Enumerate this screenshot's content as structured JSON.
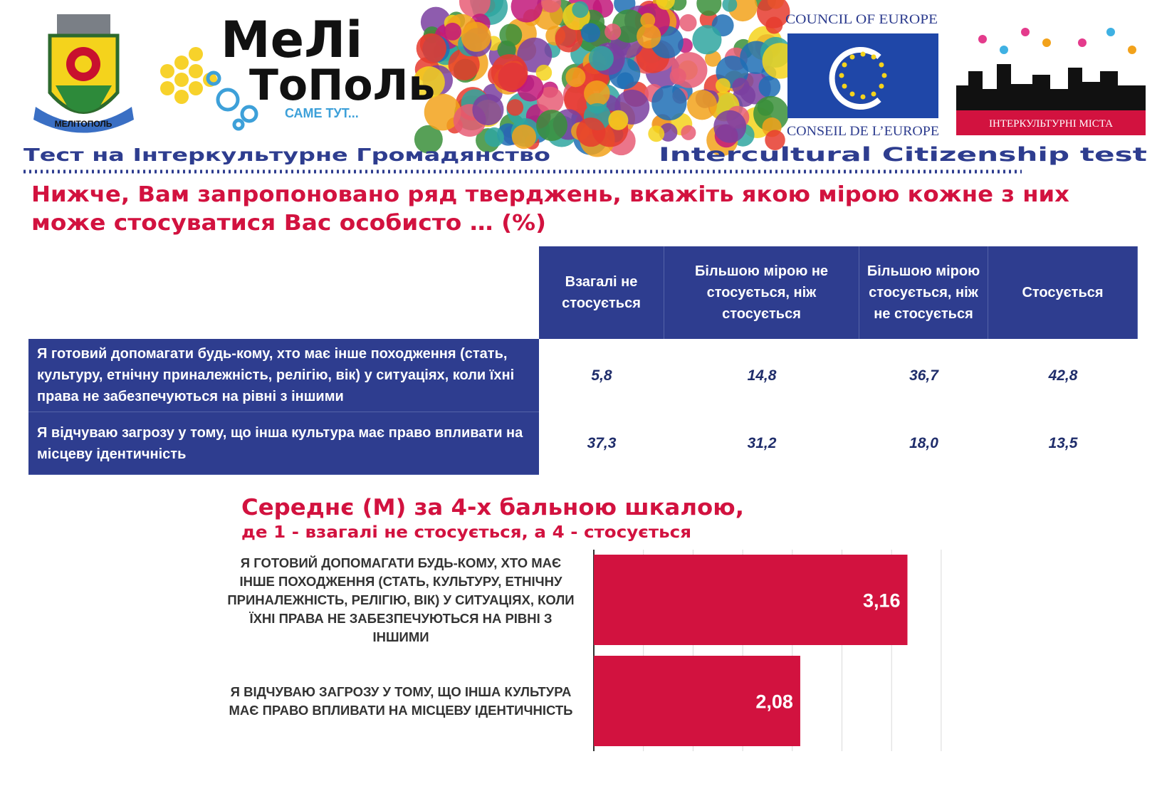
{
  "header": {
    "city_arms": "МЕЛІТОПОЛЬ",
    "brand_line1": "МеЛі",
    "brand_line2": "ТоПоЛь",
    "brand_slogan": "САМЕ ТУТ...",
    "coe_top": "COUNCIL OF EUROPE",
    "coe_bottom": "CONSEIL DE L’EUROPE",
    "icc": "ІНТЕРКУЛЬТУРНІ МІСТА",
    "title_uk": "Тест на Інтеркультурне Громадянство",
    "title_en": "Intercultural Citizenship test"
  },
  "question": [
    "Нижче, Вам запропоновано ряд тверджень, вкажіть якою мірою кожне з них",
    "може стосуватися Вас особисто … (%)"
  ],
  "table": {
    "columns": [
      "Взагалі не стосується",
      "Більшою мірою не стосується, ніж стосується",
      "Більшою мірою стосується, ніж не стосується",
      "Стосується"
    ],
    "rows": [
      {
        "label": "Я готовий допомагати будь-кому, хто має інше походження (стать, культуру, етнічну приналежність, релігію, вік) у ситуаціях, коли їхні права не забезпечуються на рівні з іншими",
        "values": [
          "5,8",
          "14,8",
          "36,7",
          "42,8"
        ]
      },
      {
        "label": "Я відчуваю загрозу у тому, що інша культура має право впливати на місцеву ідентичність",
        "values": [
          "37,3",
          "31,2",
          "18,0",
          "13,5"
        ]
      }
    ]
  },
  "chart_data": {
    "type": "bar",
    "orientation": "horizontal",
    "title": "Середнє (М) за 4-х бальною шкалою,",
    "subtitle": "де 1 - взагалі не стосується, а 4 - стосується",
    "categories": [
      "Я ГОТОВИЙ ДОПОМАГАТИ БУДЬ-КОМУ, ХТО МАЄ ІНШЕ ПОХОДЖЕННЯ (СТАТЬ, КУЛЬТУРУ, ЕТНІЧНУ ПРИНАЛЕЖНІСТЬ, РЕЛІГІЮ, ВІК) У СИТУАЦІЯХ, КОЛИ ЇХНІ ПРАВА НЕ ЗАБЕЗПЕЧУЮТЬСЯ НА РІВНІ З ІНШИМИ",
      "Я ВІДЧУВАЮ ЗАГРОЗУ У ТОМУ, ЩО ІНША КУЛЬТУРА МАЄ ПРАВО ВПЛИВАТИ НА МІСЦЕВУ ІДЕНТИЧНІСТЬ"
    ],
    "values": [
      3.16,
      2.08
    ],
    "value_labels": [
      "3,16",
      "2,08"
    ],
    "color": "#d2123f",
    "xlim": [
      0,
      3.5
    ],
    "xticks": [
      0,
      0.5,
      1,
      1.5,
      2,
      2.5,
      3,
      3.5
    ],
    "grid": true
  }
}
